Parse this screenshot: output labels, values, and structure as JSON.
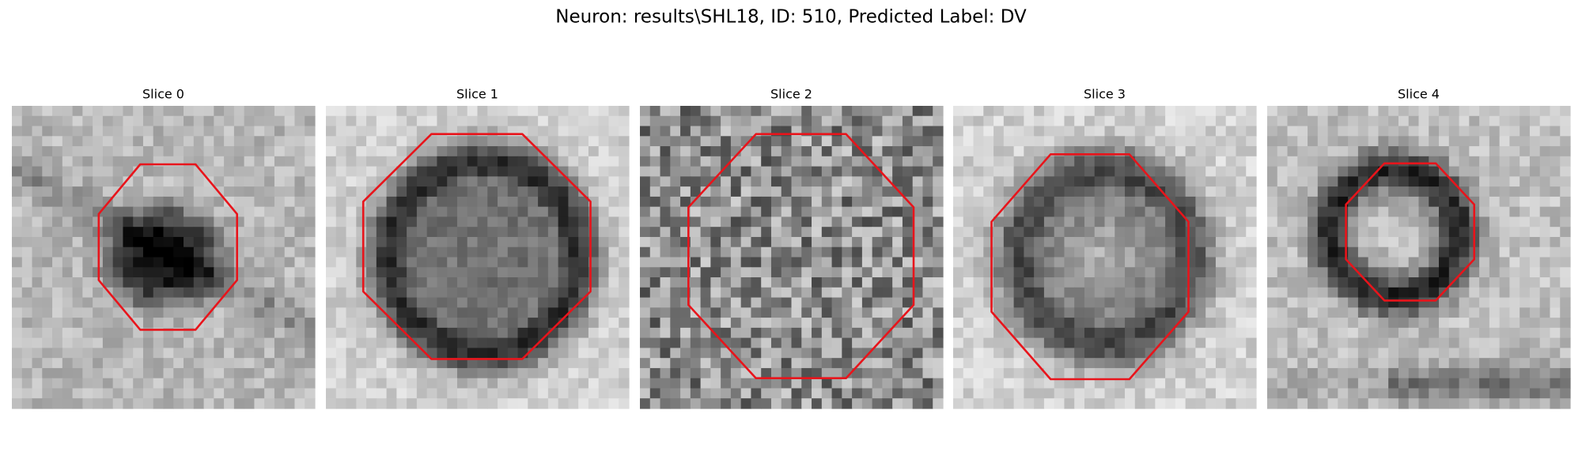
{
  "header": {
    "title": "Neuron: results\\SHL18, ID: 510, Predicted Label: DV"
  },
  "panels": [
    {
      "title": "Slice 0"
    },
    {
      "title": "Slice 1"
    },
    {
      "title": "Slice 2"
    },
    {
      "title": "Slice 3"
    },
    {
      "title": "Slice 4"
    }
  ]
}
